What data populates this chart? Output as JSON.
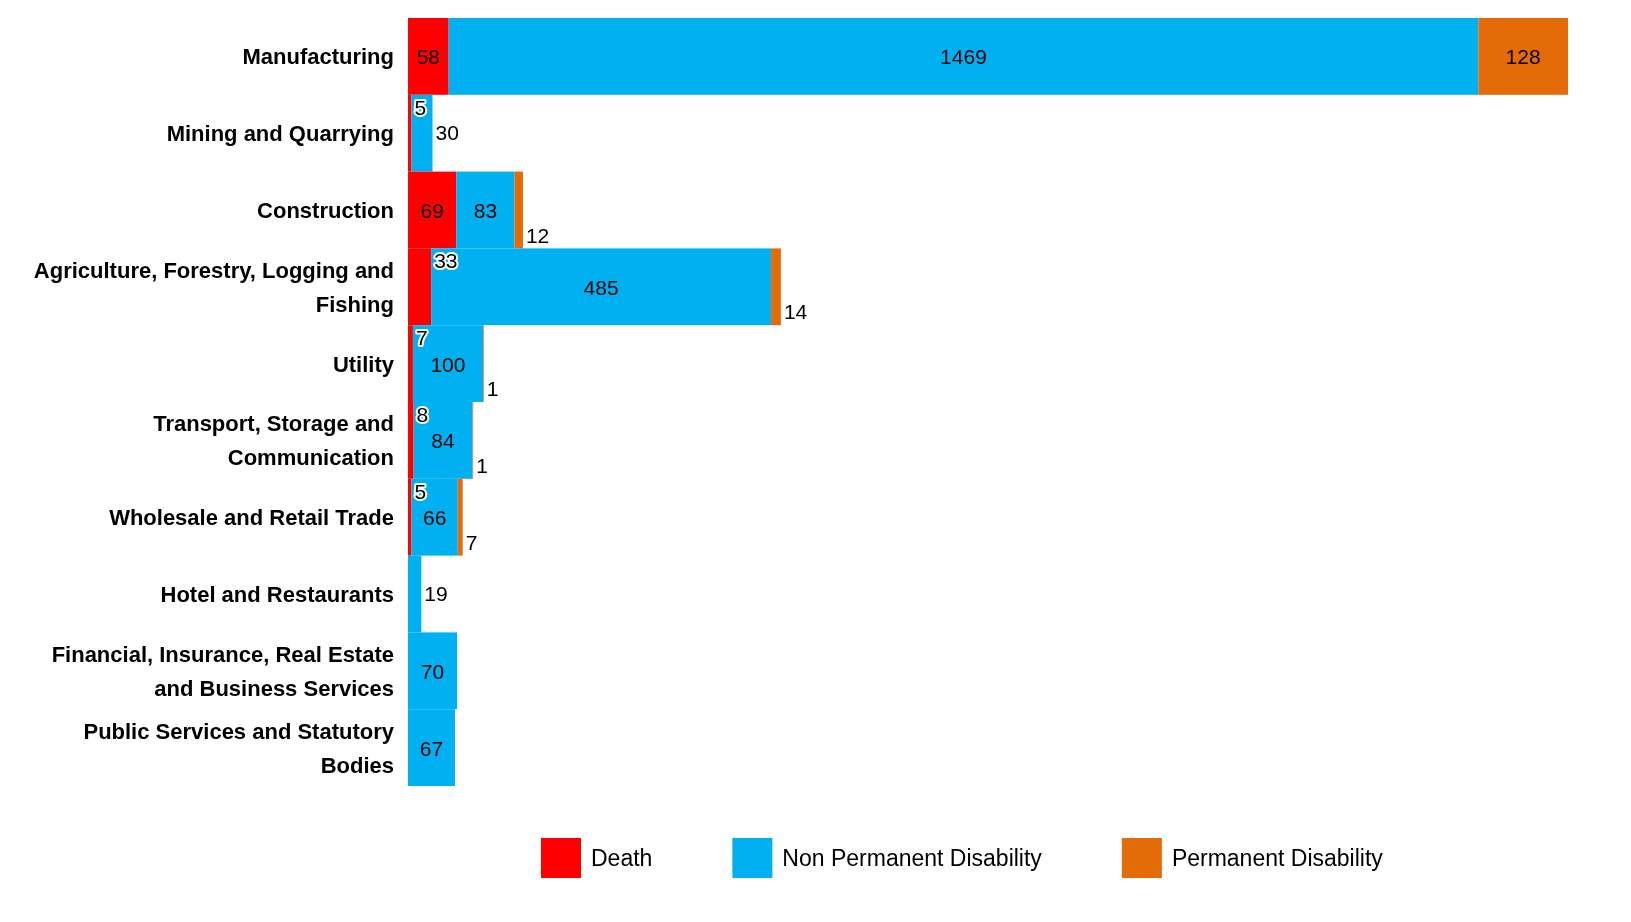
{
  "chart_data": {
    "type": "bar",
    "orientation": "horizontal",
    "stacked": true,
    "data_labels": true,
    "legend": "bottom",
    "categories": [
      "Manufacturing",
      "Mining and Quarrying",
      "Construction",
      "Agriculture, Forestry, Logging and Fishing",
      "Utility",
      "Transport, Storage and Communication",
      "Wholesale and Retail Trade",
      "Hotel and Restaurants",
      "Financial, Insurance, Real Estate and Business Services",
      "Public Services and Statutory Bodies"
    ],
    "series": [
      {
        "name": "Death",
        "color": "#ff0000",
        "values": [
          58,
          5,
          69,
          33,
          7,
          8,
          5,
          null,
          null,
          null
        ]
      },
      {
        "name": "Non Permanent Disability",
        "color": "#00b0f0",
        "values": [
          1469,
          30,
          83,
          485,
          100,
          84,
          66,
          19,
          70,
          67
        ]
      },
      {
        "name": "Permanent Disability",
        "color": "#e36c09",
        "values": [
          128,
          null,
          12,
          14,
          1,
          1,
          7,
          null,
          null,
          null
        ]
      }
    ]
  }
}
